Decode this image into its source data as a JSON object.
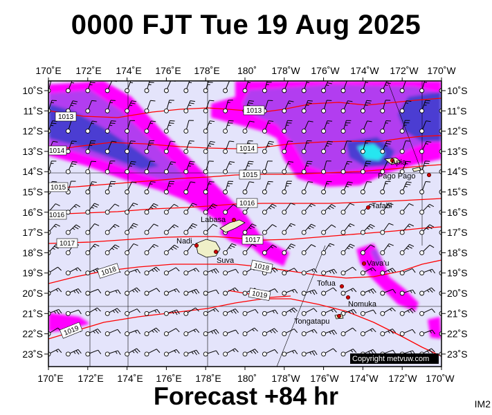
{
  "title": "0000 FJT Tue 19 Aug 2025",
  "footer": "Forecast +84 hr",
  "product_code": "IM2",
  "copyright": "Copyright metvuw.com",
  "colors": {
    "ocean": "#e4e4fb",
    "rain_light": "#ff00ff",
    "rain_moderate": "#b23cf0",
    "rain_heavy": "#4b3cd2",
    "rain_extreme": "#28e6f0",
    "isobar": "#ff0000",
    "land": "#f0f0c8",
    "town": "#cc0000"
  },
  "axes": {
    "top_lon": [
      "170˚E",
      "172˚E",
      "174˚E",
      "176˚E",
      "178˚E",
      "180˚",
      "178˚W",
      "176˚W",
      "174˚W",
      "172˚W",
      "170˚W"
    ],
    "bottom_lon": [
      "170˚E",
      "172˚E",
      "174˚E",
      "176˚E",
      "178˚E",
      "180˚",
      "178˚W",
      "176˚W",
      "174˚W",
      "172˚W",
      "170˚W"
    ],
    "lat": [
      "10˚S",
      "11˚S",
      "12˚S",
      "13˚S",
      "14˚S",
      "15˚S",
      "16˚S",
      "17˚S",
      "18˚S",
      "19˚S",
      "20˚S",
      "21˚S",
      "22˚S",
      "23˚S"
    ]
  },
  "isobars": [
    {
      "label": "1013"
    },
    {
      "label": "1013"
    },
    {
      "label": "1014"
    },
    {
      "label": "1014"
    },
    {
      "label": "1015"
    },
    {
      "label": "1015"
    },
    {
      "label": "1016"
    },
    {
      "label": "1016"
    },
    {
      "label": "1017"
    },
    {
      "label": "1017"
    },
    {
      "label": "1018"
    },
    {
      "label": "1018"
    },
    {
      "label": "1019"
    },
    {
      "label": "1019"
    }
  ],
  "places": [
    {
      "name": "Apia"
    },
    {
      "name": "Pago Pago"
    },
    {
      "name": "Tafahi"
    },
    {
      "name": "Labasa"
    },
    {
      "name": "Nadi"
    },
    {
      "name": "Suva"
    },
    {
      "name": "Vava'u"
    },
    {
      "name": "Tofua"
    },
    {
      "name": "Nomuka"
    },
    {
      "name": "Tongatapu"
    }
  ]
}
